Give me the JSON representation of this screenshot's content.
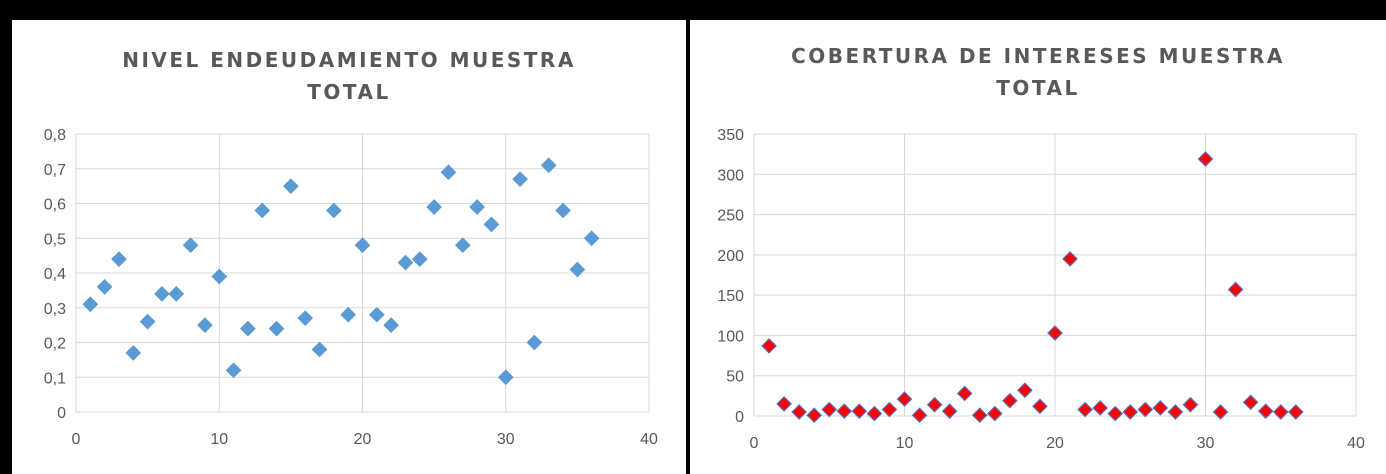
{
  "chart_data": [
    {
      "type": "scatter",
      "title_lines": [
        "NIVEL ENDEUDAMIENTO MUESTRA",
        "TOTAL"
      ],
      "xlabel": "",
      "ylabel": "",
      "xlim": [
        0,
        40
      ],
      "ylim": [
        0,
        0.8
      ],
      "x_ticks": [
        0,
        10,
        20,
        30,
        40
      ],
      "y_ticks": [
        0,
        0.1,
        0.2,
        0.3,
        0.4,
        0.5,
        0.6,
        0.7,
        0.8
      ],
      "x_tick_labels": [
        "0",
        "10",
        "20",
        "30",
        "40"
      ],
      "y_tick_labels": [
        "0",
        "0,1",
        "0,2",
        "0,3",
        "0,4",
        "0,5",
        "0,6",
        "0,7",
        "0,8"
      ],
      "grid": true,
      "legend": "none",
      "marker": "diamond",
      "marker_color": "#5b9bd5",
      "marker_edge": "#5b9bd5",
      "x": [
        1,
        2,
        3,
        4,
        5,
        6,
        7,
        8,
        9,
        10,
        11,
        12,
        13,
        14,
        15,
        16,
        17,
        18,
        19,
        20,
        21,
        22,
        23,
        24,
        25,
        26,
        27,
        28,
        29,
        30,
        31,
        32,
        33,
        34,
        35,
        36
      ],
      "y": [
        0.31,
        0.36,
        0.44,
        0.17,
        0.26,
        0.34,
        0.34,
        0.48,
        0.25,
        0.39,
        0.12,
        0.24,
        0.58,
        0.24,
        0.65,
        0.27,
        0.18,
        0.58,
        0.28,
        0.48,
        0.28,
        0.25,
        0.43,
        0.44,
        0.59,
        0.69,
        0.48,
        0.59,
        0.54,
        0.1,
        0.67,
        0.2,
        0.71,
        0.58,
        0.41,
        0.5
      ]
    },
    {
      "type": "scatter",
      "title_lines": [
        "COBERTURA DE INTERESES MUESTRA",
        "TOTAL"
      ],
      "xlabel": "",
      "ylabel": "",
      "xlim": [
        0,
        40
      ],
      "ylim": [
        0,
        350
      ],
      "x_ticks": [
        0,
        10,
        20,
        30,
        40
      ],
      "y_ticks": [
        0,
        50,
        100,
        150,
        200,
        250,
        300,
        350
      ],
      "x_tick_labels": [
        "0",
        "10",
        "20",
        "30",
        "40"
      ],
      "y_tick_labels": [
        "0",
        "50",
        "100",
        "150",
        "200",
        "250",
        "300",
        "350"
      ],
      "grid": true,
      "legend": "none",
      "marker": "diamond",
      "marker_color": "#ff0000",
      "marker_edge": "#5b6fb5",
      "x": [
        1,
        2,
        3,
        4,
        5,
        6,
        7,
        8,
        9,
        10,
        11,
        12,
        13,
        14,
        15,
        16,
        17,
        18,
        19,
        20,
        21,
        22,
        23,
        24,
        25,
        26,
        27,
        28,
        29,
        30,
        31,
        32,
        33,
        34,
        35,
        36
      ],
      "y": [
        87,
        15,
        5,
        1,
        8,
        6,
        6,
        3,
        8,
        21,
        1,
        14,
        6,
        28,
        1,
        3,
        19,
        32,
        12,
        103,
        195,
        8,
        10,
        3,
        5,
        8,
        10,
        5,
        14,
        319,
        5,
        157,
        17,
        6,
        5,
        5
      ]
    }
  ]
}
